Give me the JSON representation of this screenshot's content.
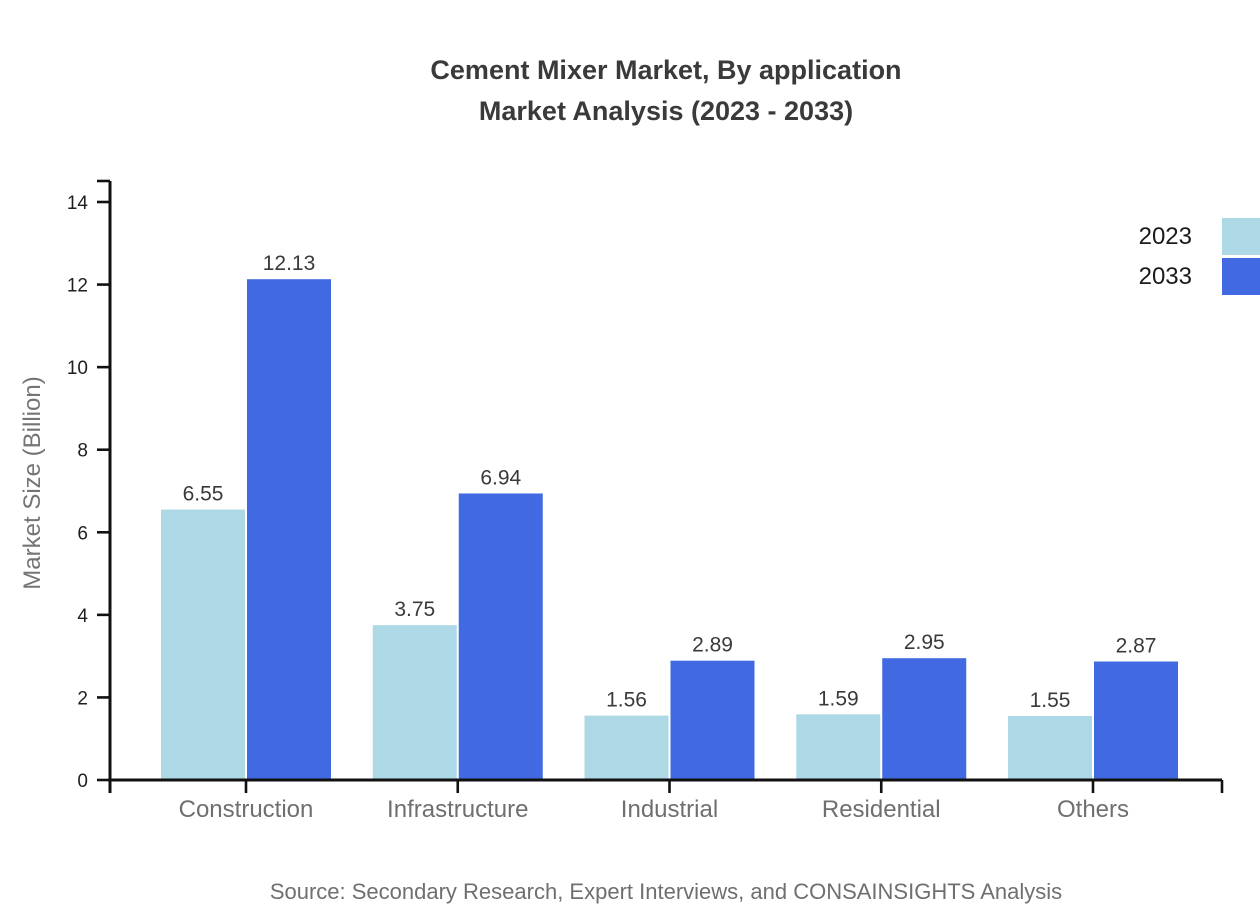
{
  "title": {
    "line1": "Cement Mixer Market, By application",
    "line2": "Market Analysis (2023 - 2033)"
  },
  "y_axis": {
    "label": "Market Size (Billion)"
  },
  "legend": [
    {
      "label": "2023",
      "color": "#add8e6"
    },
    {
      "label": "2033",
      "color": "#4169e1"
    }
  ],
  "source": "Source: Secondary Research, Expert Interviews, and CONSAINSIGHTS Analysis",
  "chart_data": {
    "type": "bar",
    "title": "Cement Mixer Market, By application Market Analysis (2023 - 2033)",
    "categories": [
      "Construction",
      "Infrastructure",
      "Industrial",
      "Residential",
      "Others"
    ],
    "series": [
      {
        "name": "2023",
        "color": "#add8e6",
        "values": [
          6.55,
          3.75,
          1.56,
          1.59,
          1.55
        ]
      },
      {
        "name": "2033",
        "color": "#4169e1",
        "values": [
          12.13,
          6.94,
          2.89,
          2.95,
          2.87
        ]
      }
    ],
    "xlabel": "",
    "ylabel": "Market Size (Billion)",
    "ylim": [
      0,
      14
    ],
    "yticks": [
      0,
      2,
      4,
      6,
      8,
      10,
      12,
      14
    ],
    "grid": false,
    "legend_position": "top-right",
    "value_labels": true
  }
}
